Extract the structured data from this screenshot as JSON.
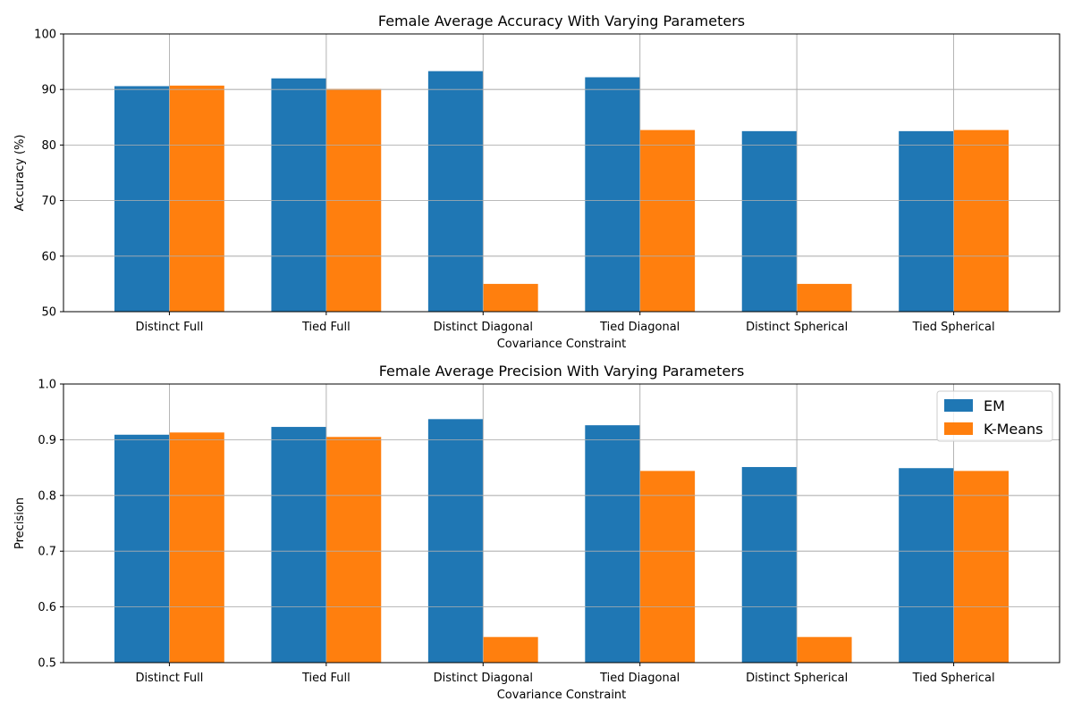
{
  "chart_data": [
    {
      "type": "bar",
      "title": "Female Average Accuracy With Varying Parameters",
      "xlabel": "Covariance Constraint",
      "ylabel": "Accuracy (%)",
      "categories": [
        "Distinct Full",
        "Tied Full",
        "Distinct Diagonal",
        "Tied Diagonal",
        "Distinct Spherical",
        "Tied Spherical"
      ],
      "ylim": [
        50,
        100
      ],
      "yticks": [
        "50",
        "60",
        "70",
        "80",
        "90",
        "100"
      ],
      "grid": true,
      "legend": null,
      "series": [
        {
          "values": [
            90.6,
            92.0,
            93.3,
            92.2,
            82.5,
            82.5
          ]
        },
        {
          "values": [
            90.7,
            90.1,
            55.0,
            82.7,
            55.0,
            82.7
          ]
        }
      ]
    },
    {
      "type": "bar",
      "title": "Female Average Precision With Varying Parameters",
      "xlabel": "Covariance Constraint",
      "ylabel": "Precision",
      "categories": [
        "Distinct Full",
        "Tied Full",
        "Distinct Diagonal",
        "Tied Diagonal",
        "Distinct Spherical",
        "Tied Spherical"
      ],
      "ylim": [
        0.5,
        1.0
      ],
      "yticks": [
        "0.5",
        "0.6",
        "0.7",
        "0.8",
        "0.9",
        "1.0"
      ],
      "grid": true,
      "legend": "top-right",
      "series": [
        {
          "name": "EM",
          "values": [
            0.909,
            0.923,
            0.937,
            0.926,
            0.851,
            0.849
          ]
        },
        {
          "name": "K-Means",
          "values": [
            0.913,
            0.905,
            0.546,
            0.844,
            0.546,
            0.844
          ]
        }
      ]
    }
  ],
  "colors": {
    "series": [
      "#1f77b4",
      "#ff7f0e"
    ],
    "grid": "#b0b0b0",
    "axis": "#000000"
  }
}
